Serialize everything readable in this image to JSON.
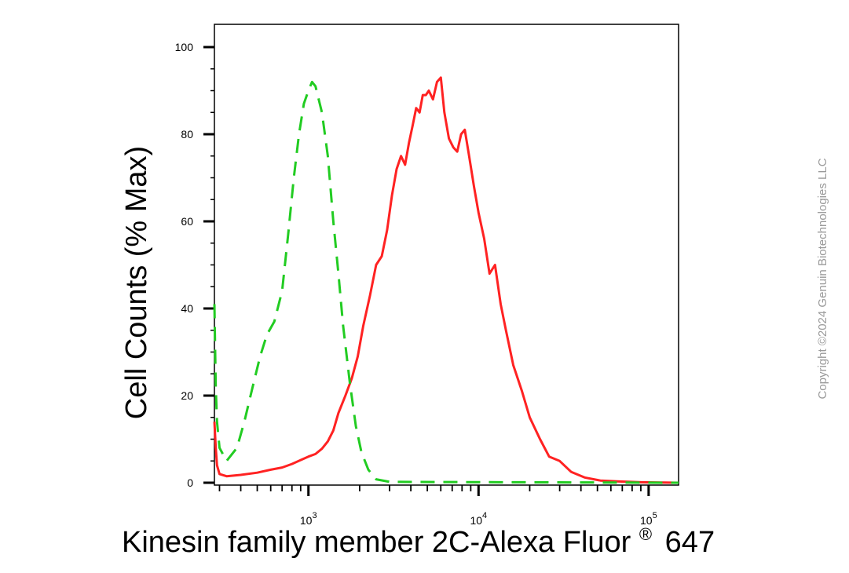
{
  "chart_data": {
    "type": "line",
    "xlabel": "Kinesin family member 2C-Alexa Fluor",
    "xlabel_sup": "®",
    "xlabel_suffix": "647",
    "ylabel": "Cell Counts (% Max)",
    "x_scale": "log",
    "xlim": [
      280,
      150000
    ],
    "ylim": [
      0,
      105
    ],
    "y_ticks": [
      0,
      20,
      40,
      60,
      80,
      100
    ],
    "x_major_ticks": [
      {
        "value": 1000,
        "base": "10",
        "exp": "3"
      },
      {
        "value": 10000,
        "base": "10",
        "exp": "4"
      },
      {
        "value": 100000,
        "base": "10",
        "exp": "5"
      }
    ],
    "grid": false,
    "series": [
      {
        "color": "#ff2222",
        "style": "solid",
        "points": [
          [
            280,
            14
          ],
          [
            285,
            8
          ],
          [
            290,
            4
          ],
          [
            300,
            2
          ],
          [
            330,
            1.5
          ],
          [
            400,
            1.8
          ],
          [
            500,
            2.3
          ],
          [
            600,
            3.0
          ],
          [
            700,
            3.5
          ],
          [
            800,
            4.3
          ],
          [
            900,
            5.2
          ],
          [
            1000,
            6.0
          ],
          [
            1100,
            6.6
          ],
          [
            1200,
            7.8
          ],
          [
            1300,
            9.5
          ],
          [
            1400,
            12
          ],
          [
            1500,
            16
          ],
          [
            1650,
            20
          ],
          [
            1800,
            24
          ],
          [
            1950,
            29
          ],
          [
            2100,
            36
          ],
          [
            2300,
            43
          ],
          [
            2500,
            50
          ],
          [
            2700,
            52
          ],
          [
            2900,
            58
          ],
          [
            3100,
            66
          ],
          [
            3300,
            72
          ],
          [
            3500,
            75
          ],
          [
            3700,
            73
          ],
          [
            3900,
            78
          ],
          [
            4100,
            82
          ],
          [
            4300,
            86
          ],
          [
            4500,
            85
          ],
          [
            4700,
            89
          ],
          [
            4900,
            89
          ],
          [
            5100,
            90
          ],
          [
            5400,
            88
          ],
          [
            5700,
            92
          ],
          [
            6000,
            93
          ],
          [
            6300,
            85
          ],
          [
            6700,
            79
          ],
          [
            7100,
            77
          ],
          [
            7500,
            76
          ],
          [
            7900,
            80
          ],
          [
            8300,
            81
          ],
          [
            8800,
            75
          ],
          [
            9400,
            68
          ],
          [
            10000,
            62
          ],
          [
            10800,
            56
          ],
          [
            11600,
            48
          ],
          [
            12500,
            50
          ],
          [
            13500,
            41
          ],
          [
            14500,
            35
          ],
          [
            16000,
            27
          ],
          [
            18000,
            21
          ],
          [
            20000,
            15
          ],
          [
            23000,
            10
          ],
          [
            26000,
            6
          ],
          [
            30000,
            5
          ],
          [
            35000,
            2.5
          ],
          [
            42000,
            1.2
          ],
          [
            52000,
            0.5
          ],
          [
            65000,
            0.3
          ],
          [
            90000,
            0.1
          ],
          [
            150000,
            0
          ]
        ]
      },
      {
        "color": "#22cc22",
        "style": "dashed",
        "points": [
          [
            280,
            41
          ],
          [
            285,
            22
          ],
          [
            290,
            14
          ],
          [
            300,
            8
          ],
          [
            330,
            5
          ],
          [
            380,
            8
          ],
          [
            420,
            14
          ],
          [
            470,
            22
          ],
          [
            520,
            29
          ],
          [
            570,
            34
          ],
          [
            630,
            37
          ],
          [
            700,
            44
          ],
          [
            760,
            57
          ],
          [
            820,
            70
          ],
          [
            880,
            80
          ],
          [
            940,
            87
          ],
          [
            1000,
            90
          ],
          [
            1050,
            92
          ],
          [
            1100,
            91
          ],
          [
            1200,
            85
          ],
          [
            1300,
            75
          ],
          [
            1400,
            60
          ],
          [
            1500,
            48
          ],
          [
            1600,
            36
          ],
          [
            1750,
            23
          ],
          [
            1900,
            13
          ],
          [
            2050,
            7
          ],
          [
            2250,
            3
          ],
          [
            2500,
            0.8
          ],
          [
            3000,
            0.2
          ],
          [
            150000,
            0
          ]
        ]
      }
    ]
  },
  "watermark": "Copyright ©2024 Genuin Biotechnologies LLC"
}
